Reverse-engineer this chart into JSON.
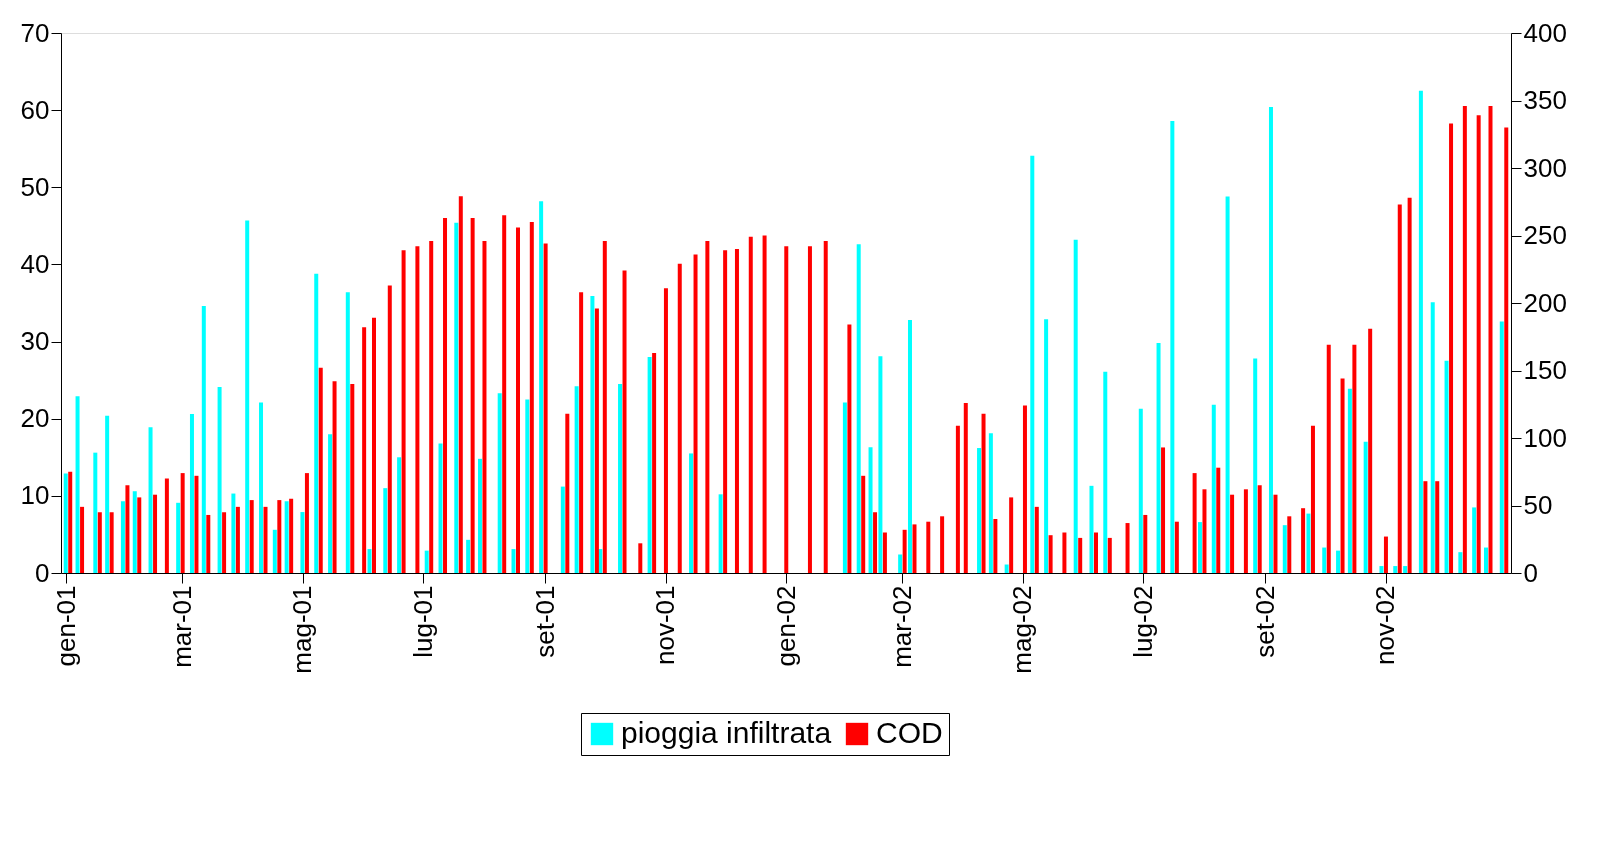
{
  "chart_data": {
    "type": "bar",
    "x": [
      "2001-01-02",
      "2001-01-08",
      "2001-01-17",
      "2001-01-23",
      "2001-01-31",
      "2001-02-06",
      "2001-02-14",
      "2001-02-20",
      "2001-02-28",
      "2001-03-07",
      "2001-03-13",
      "2001-03-21",
      "2001-03-28",
      "2001-04-04",
      "2001-04-11",
      "2001-04-18",
      "2001-04-24",
      "2001-05-02",
      "2001-05-09",
      "2001-05-16",
      "2001-05-25",
      "2001-05-31",
      "2001-06-05",
      "2001-06-13",
      "2001-06-20",
      "2001-06-27",
      "2001-07-04",
      "2001-07-11",
      "2001-07-19",
      "2001-07-25",
      "2001-07-31",
      "2001-08-10",
      "2001-08-17",
      "2001-08-24",
      "2001-08-31",
      "2001-09-11",
      "2001-09-18",
      "2001-09-26",
      "2001-09-30",
      "2001-10-10",
      "2001-10-18",
      "2001-10-25",
      "2001-10-31",
      "2001-11-07",
      "2001-11-15",
      "2001-11-21",
      "2001-11-30",
      "2001-12-06",
      "2001-12-13",
      "2001-12-20",
      "2001-12-31",
      "2002-01-12",
      "2002-01-20",
      "2002-02-01",
      "2002-02-08",
      "2002-02-14",
      "2002-02-19",
      "2002-03-01",
      "2002-03-06",
      "2002-03-13",
      "2002-03-20",
      "2002-03-28",
      "2002-04-01",
      "2002-04-10",
      "2002-04-16",
      "2002-04-24",
      "2002-05-01",
      "2002-05-07",
      "2002-05-14",
      "2002-05-21",
      "2002-05-29",
      "2002-06-06",
      "2002-06-13",
      "2002-06-22",
      "2002-07-01",
      "2002-07-10",
      "2002-07-17",
      "2002-07-26",
      "2002-07-31",
      "2002-08-07",
      "2002-08-14",
      "2002-08-21",
      "2002-08-28",
      "2002-09-05",
      "2002-09-12",
      "2002-09-19",
      "2002-09-24",
      "2002-10-02",
      "2002-10-09",
      "2002-10-15",
      "2002-10-23",
      "2002-10-31",
      "2002-11-07",
      "2002-11-12",
      "2002-11-20",
      "2002-11-26",
      "2002-12-03",
      "2002-12-10",
      "2002-12-17",
      "2002-12-23",
      "2002-12-31"
    ],
    "series": [
      {
        "name": "pioggia infiltrata",
        "color": "#00ffff",
        "values": [
          12.9,
          22.9,
          15.6,
          20.4,
          9.3,
          10.6,
          18.9,
          0,
          9.1,
          20.6,
          34.6,
          24.1,
          10.3,
          45.7,
          22.1,
          5.6,
          9.3,
          7.9,
          38.8,
          18,
          36.4,
          0,
          3.1,
          11,
          15,
          0,
          2.9,
          16.8,
          45.4,
          4.3,
          14.8,
          23.3,
          3.1,
          22.5,
          48.2,
          11.2,
          24.2,
          35.9,
          3.1,
          24.5,
          0,
          28,
          0,
          0,
          15.5,
          0,
          10.2,
          0,
          0,
          0,
          0,
          0,
          0,
          22.1,
          42.6,
          16.3,
          28.1,
          2.4,
          32.8,
          0,
          0,
          0,
          0,
          16.2,
          18.1,
          1.1,
          0,
          54.1,
          32.9,
          0,
          43.2,
          11.3,
          26.1,
          0,
          21.3,
          29.8,
          58.6,
          0,
          6.6,
          21.8,
          48.8,
          0,
          27.8,
          60.4,
          6.2,
          0,
          7.7,
          3.3,
          2.9,
          23.9,
          17,
          0.9,
          0.9,
          0.9,
          62.5,
          35.1,
          27.5,
          2.7,
          8.5,
          3.3,
          32.6
        ]
      },
      {
        "name": "COD",
        "color": "#ff0000",
        "axis": "y2",
        "values": [
          75,
          49,
          45,
          45,
          65,
          56,
          58,
          70,
          74,
          72,
          43,
          45,
          49,
          54,
          49,
          54,
          55,
          74,
          152,
          142,
          140,
          182,
          189,
          213,
          239,
          242,
          246,
          263,
          279,
          263,
          246,
          265,
          256,
          260,
          244,
          118,
          208,
          196,
          246,
          224,
          22,
          163,
          211,
          229,
          236,
          246,
          239,
          240,
          249,
          250,
          242,
          242,
          246,
          184,
          72,
          45,
          30,
          32,
          36,
          38,
          42,
          109,
          126,
          118,
          40,
          56,
          124,
          49,
          28,
          30,
          26,
          30,
          26,
          37,
          43,
          93,
          38,
          74,
          62,
          78,
          58,
          62,
          65,
          58,
          42,
          48,
          109,
          169,
          144,
          169,
          181,
          27,
          273,
          278,
          68,
          68,
          333,
          346,
          339,
          346,
          330
        ]
      }
    ],
    "xlim": [
      "2001-01-01",
      "2003-01-01"
    ],
    "xticks": [
      {
        "value": "2001-01-01",
        "label": "gen-01"
      },
      {
        "value": "2001-03-01",
        "label": "mar-01"
      },
      {
        "value": "2001-05-01",
        "label": "mag-01"
      },
      {
        "value": "2001-07-01",
        "label": "lug-01"
      },
      {
        "value": "2001-09-01",
        "label": "set-01"
      },
      {
        "value": "2001-11-01",
        "label": "nov-01"
      },
      {
        "value": "2002-01-01",
        "label": "gen-02"
      },
      {
        "value": "2002-03-01",
        "label": "mar-02"
      },
      {
        "value": "2002-05-01",
        "label": "mag-02"
      },
      {
        "value": "2002-07-01",
        "label": "lug-02"
      },
      {
        "value": "2002-09-01",
        "label": "set-02"
      },
      {
        "value": "2002-11-01",
        "label": "nov-02"
      }
    ],
    "ylim": [
      0,
      70
    ],
    "yticks": [
      0,
      10,
      20,
      30,
      40,
      50,
      60,
      70
    ],
    "y2lim": [
      0,
      400
    ],
    "y2ticks": [
      0,
      50,
      100,
      150,
      200,
      250,
      300,
      350,
      400
    ],
    "legend": "bottom",
    "grid": false
  }
}
